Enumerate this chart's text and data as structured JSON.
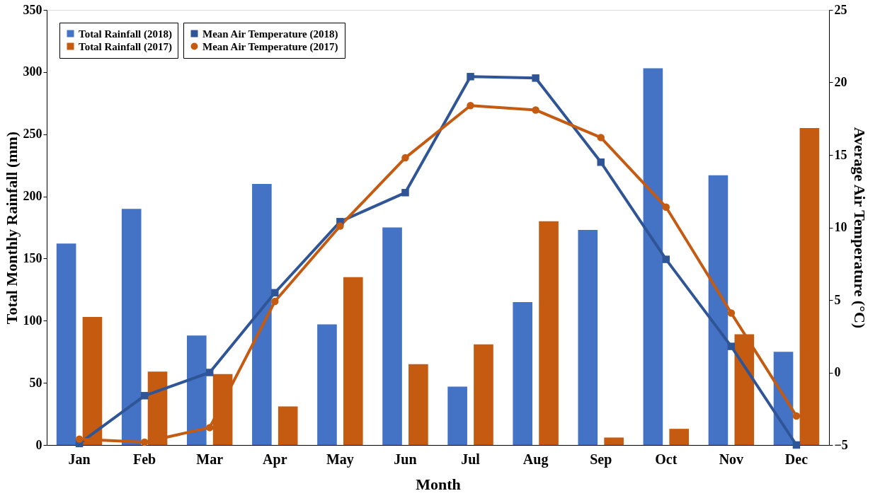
{
  "chart_data": {
    "type": "bar",
    "xlabel": "Month",
    "ylabel": "Total Monthly Rainfall (mm)",
    "y2label": "Average Air Temperature (°C)",
    "categories": [
      "Jan",
      "Feb",
      "Mar",
      "Apr",
      "May",
      "Jun",
      "Jul",
      "Aug",
      "Sep",
      "Oct",
      "Nov",
      "Dec"
    ],
    "series": [
      {
        "name": "Total Rainfall (2018)",
        "color": "#4472c4",
        "values": [
          162,
          190,
          88,
          210,
          97,
          175,
          47,
          115,
          173,
          303,
          217,
          75
        ]
      },
      {
        "name": "Total Rainfall (2017)",
        "color": "#c55a11",
        "values": [
          103,
          59,
          57,
          31,
          135,
          65,
          81,
          180,
          6,
          13,
          89,
          255
        ]
      },
      {
        "name": "Mean Air Temperature (2018)",
        "type": "line",
        "axis": "y2",
        "marker": "square",
        "color": "#2f5597",
        "values": [
          -4.9,
          -1.6,
          0.0,
          5.5,
          10.4,
          12.4,
          20.4,
          20.3,
          14.5,
          7.8,
          1.8,
          -5.0
        ]
      },
      {
        "name": "Mean Air Temperature (2017)",
        "type": "line",
        "axis": "y2",
        "marker": "circle",
        "color": "#c55a11",
        "values": [
          -4.6,
          -4.8,
          -3.8,
          4.9,
          10.1,
          14.8,
          18.4,
          18.1,
          16.2,
          11.4,
          4.1,
          -3.0
        ]
      }
    ],
    "ylim": [
      0,
      350
    ],
    "yticks": [
      0,
      50,
      100,
      150,
      200,
      250,
      300,
      350
    ],
    "y2lim": [
      -5,
      25
    ],
    "y2ticks": [
      -5,
      0,
      5,
      10,
      15,
      20,
      25
    ],
    "grid": false,
    "legend": "top left",
    "line_style": "solid"
  }
}
